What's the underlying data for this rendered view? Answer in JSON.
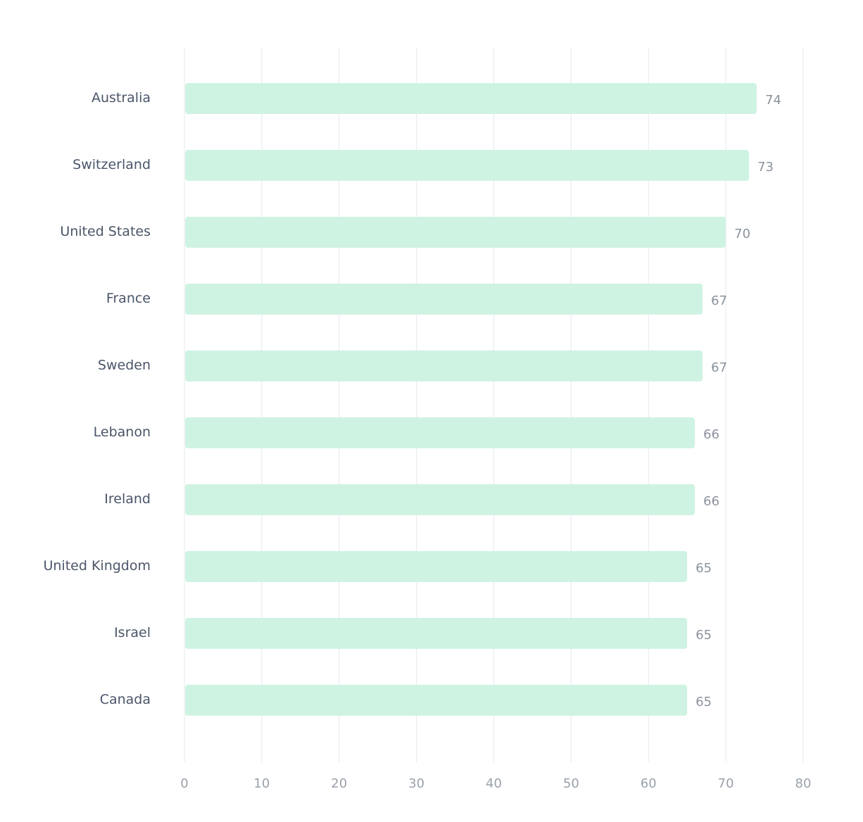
{
  "chart_data": {
    "type": "bar",
    "orientation": "horizontal",
    "title": "",
    "xlabel": "",
    "ylabel": "",
    "categories": [
      "Australia",
      "Switzerland",
      "United States",
      "France",
      "Sweden",
      "Lebanon",
      "Ireland",
      "United Kingdom",
      "Israel",
      "Canada"
    ],
    "values": [
      74,
      73,
      70,
      67,
      67,
      66,
      66,
      65,
      65,
      65
    ],
    "value_labels": [
      "74",
      "73",
      "70",
      "67",
      "67",
      "66",
      "66",
      "65",
      "65",
      "65"
    ],
    "xlim": [
      0,
      80
    ],
    "xticks": [
      "0",
      "10",
      "20",
      "30",
      "40",
      "50",
      "60",
      "70",
      "80"
    ],
    "grid": "vertical",
    "legend": "none",
    "colors": {
      "bar": "#cff3e3",
      "grid": "#e9ecef",
      "category_text": "#4a5568",
      "value_text": "#8a929c",
      "tick_text": "#9aa1aa"
    }
  }
}
